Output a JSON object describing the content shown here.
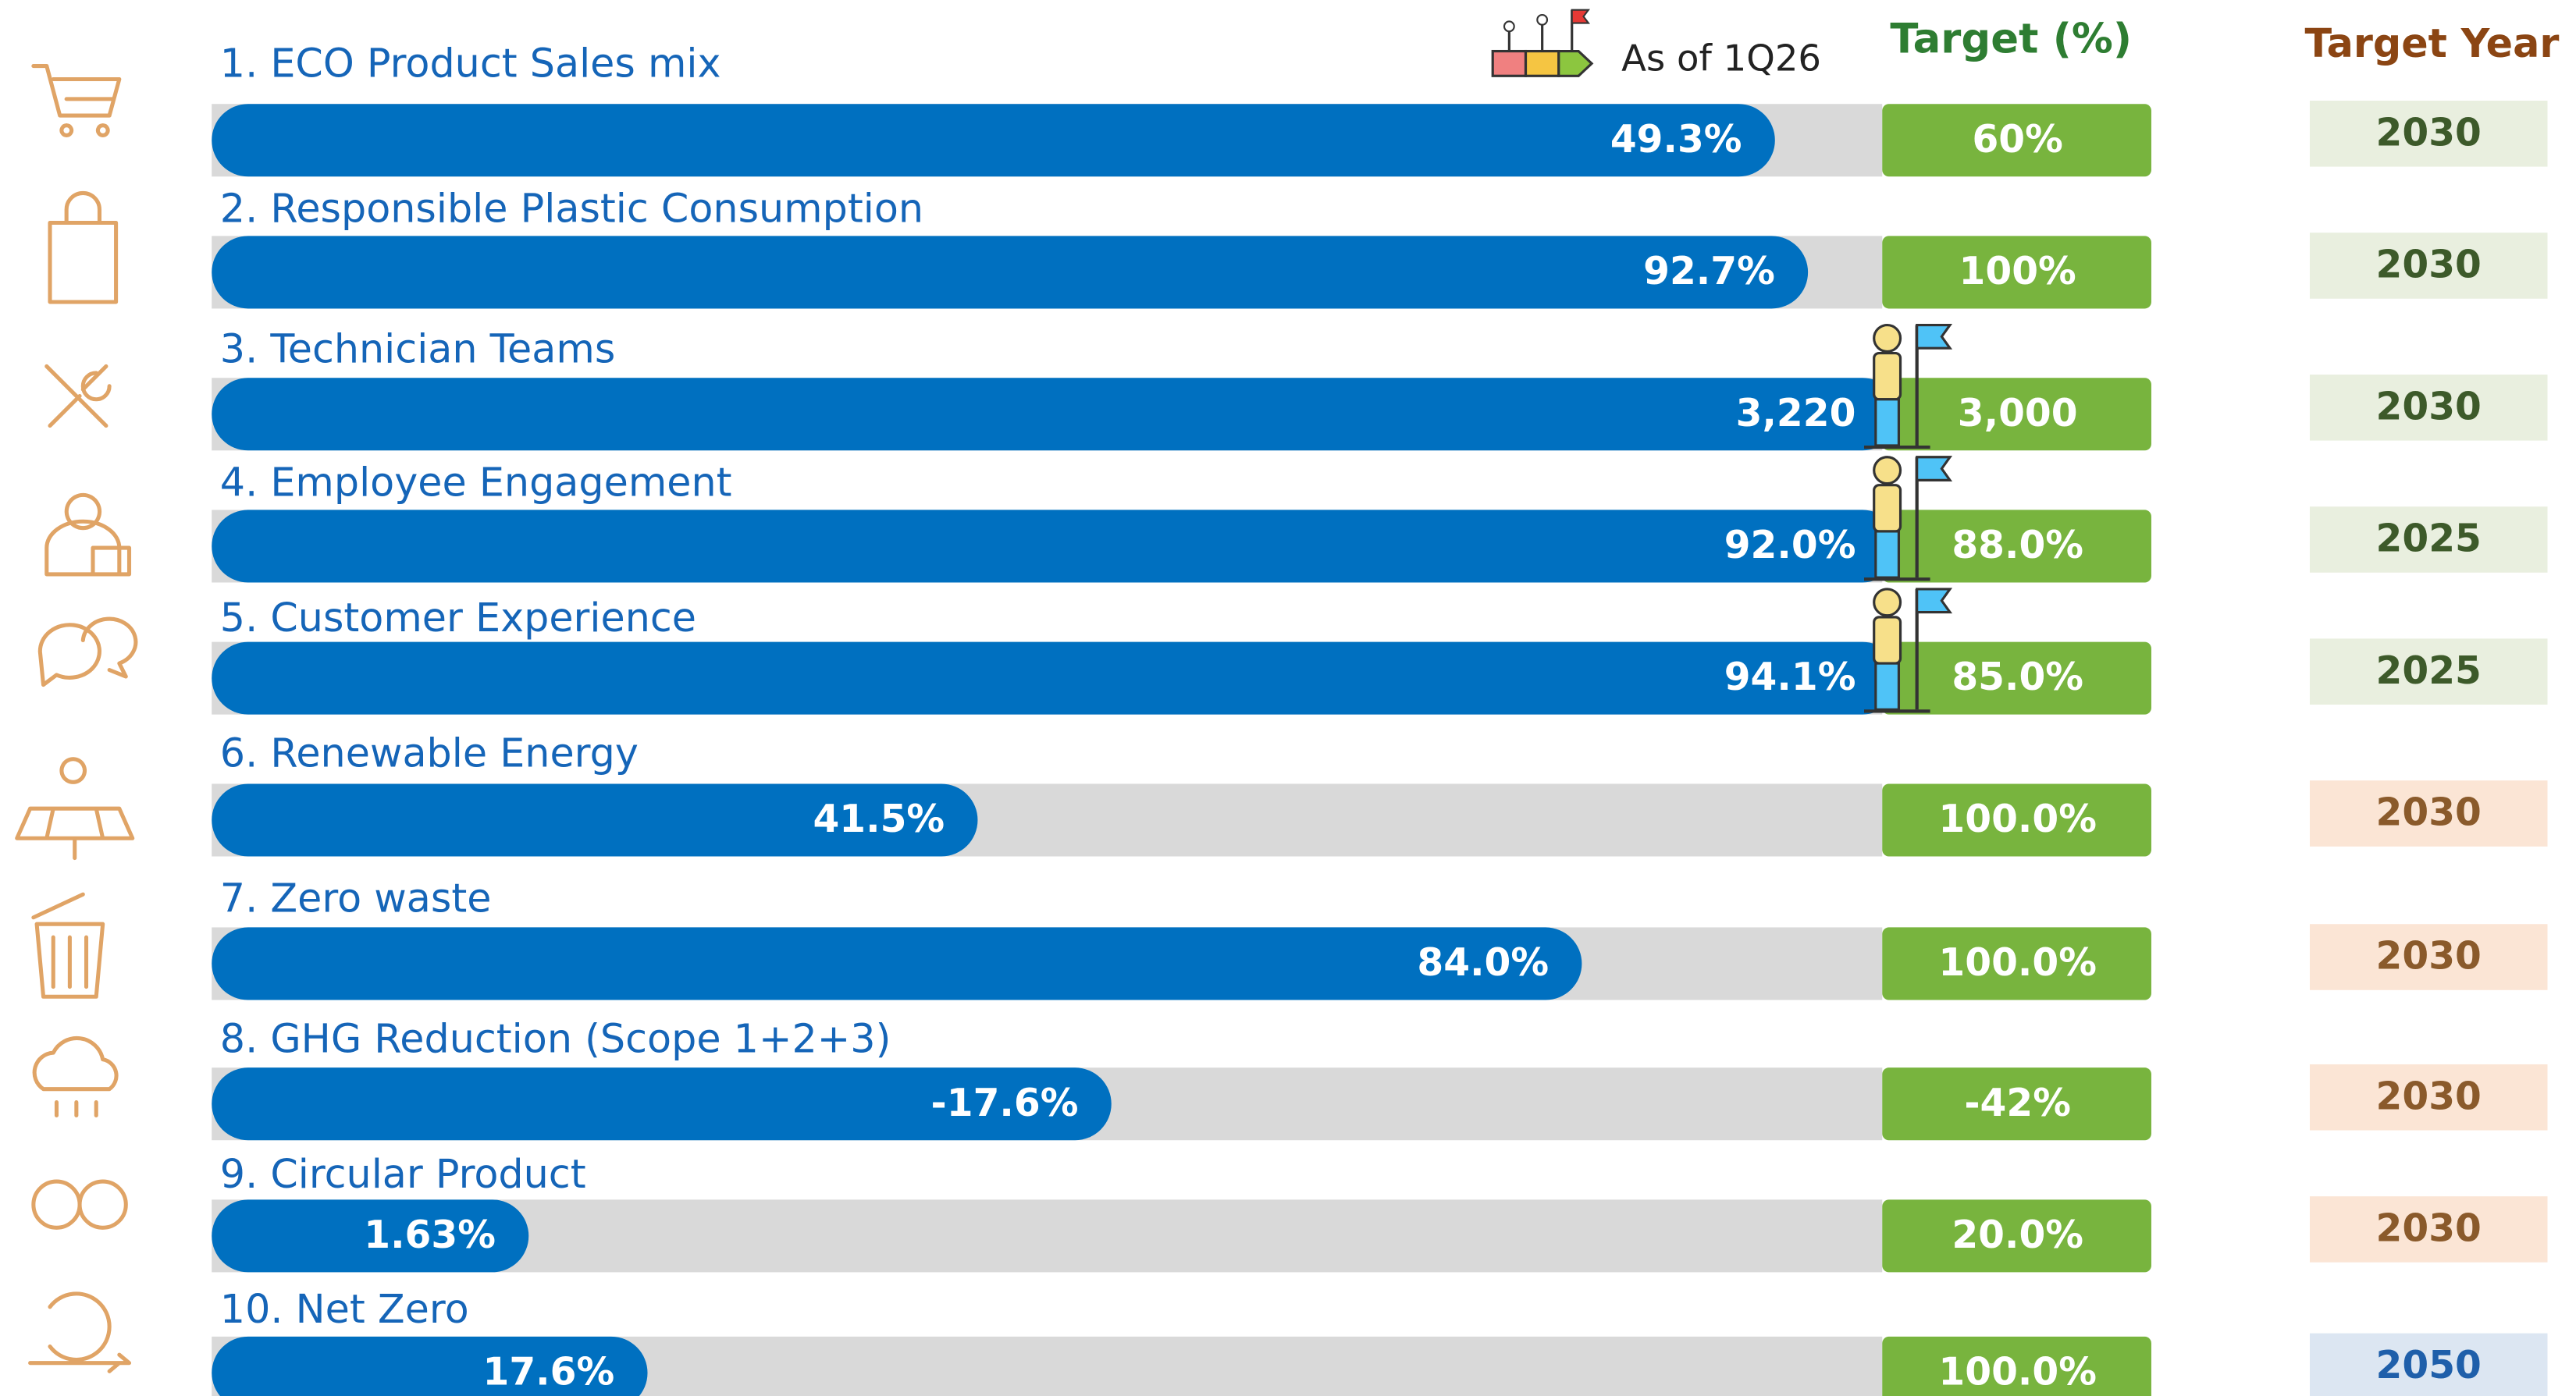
{
  "header": {
    "as_of": "As of 1Q26",
    "target_label": "Target (%)",
    "target_year_label": "Target Year"
  },
  "items": [
    {
      "label": "1. ECO Product Sales mix",
      "actual": "49.3%",
      "target": "60%",
      "year": "2030"
    },
    {
      "label": "2. Responsible Plastic Consumption",
      "actual": "92.7%",
      "target": "100%",
      "year": "2030"
    },
    {
      "label": "3. Technician Teams",
      "actual": "3,220",
      "target": "3,000",
      "year": "2030"
    },
    {
      "label": "4. Employee Engagement",
      "actual": "92.0%",
      "target": "88.0%",
      "year": "2025"
    },
    {
      "label": "5. Customer Experience",
      "actual": "94.1%",
      "target": "85.0%",
      "year": "2025"
    },
    {
      "label": "6. Renewable Energy",
      "actual": "41.5%",
      "target": "100.0%",
      "year": "2030"
    },
    {
      "label": "7. Zero waste",
      "actual": "84.0%",
      "target": "100.0%",
      "year": "2030"
    },
    {
      "label": "8. GHG Reduction (Scope 1+2+3)",
      "actual": "-17.6%",
      "target": "-42%",
      "year": "2030"
    },
    {
      "label": "9. Circular Product",
      "actual": "1.63%",
      "target": "20.0%",
      "year": "2030"
    },
    {
      "label": "10. Net Zero",
      "actual": "17.6%",
      "target": "100.0%",
      "year": "2050"
    }
  ]
}
